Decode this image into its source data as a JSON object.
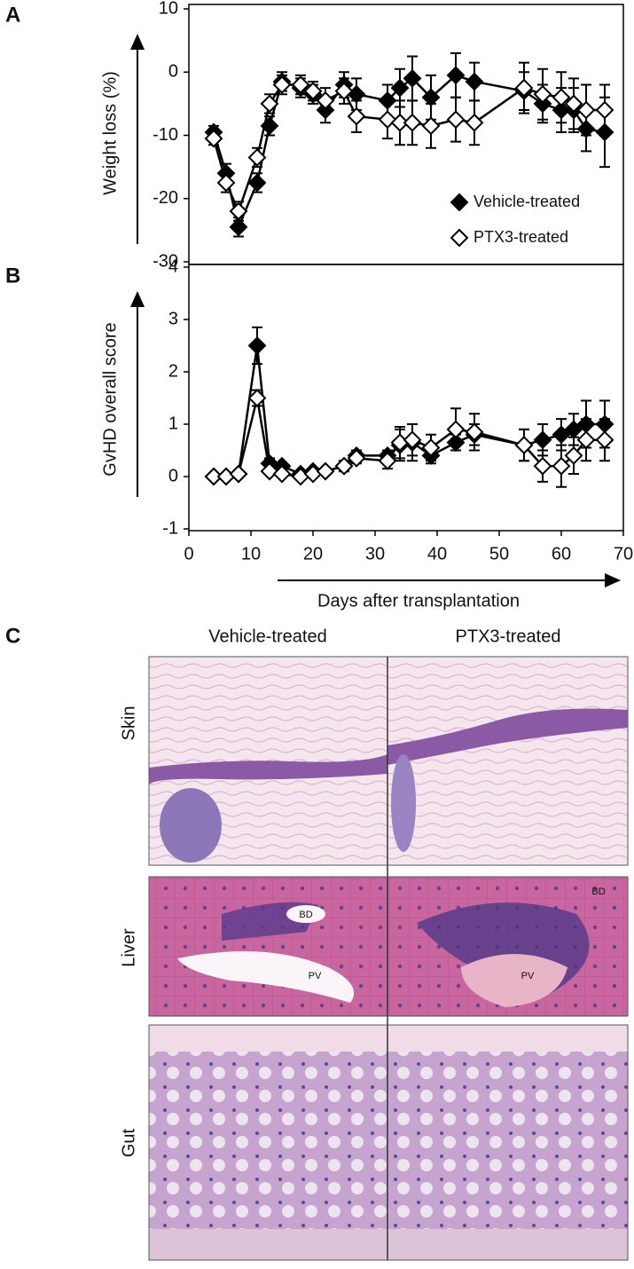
{
  "chart_data": [
    {
      "type": "line",
      "panel": "A",
      "y_label": "Weight loss (%)",
      "x": [
        4,
        6,
        8,
        11,
        13,
        15,
        18,
        20,
        22,
        25,
        27,
        32,
        34,
        36,
        39,
        43,
        46,
        54,
        57,
        60,
        62,
        64,
        67
      ],
      "xlim": [
        0,
        70
      ],
      "ylim": [
        -30,
        10
      ],
      "yticks": [
        -30,
        -20,
        -10,
        0,
        10
      ],
      "legend": "lower right",
      "series": [
        {
          "name": "Vehicle-treated",
          "color": "#000000",
          "fill": "#000000",
          "values": [
            -9.5,
            -16,
            -24.5,
            -17.5,
            -8.5,
            -1.5,
            -2.5,
            -3.5,
            -6,
            -2,
            -3.5,
            -4.5,
            -2.5,
            -1,
            -4,
            -0.5,
            -1.5,
            -3,
            -5,
            -6,
            -6,
            -9,
            -9.5
          ],
          "errors": [
            1,
            1.5,
            1.5,
            1.5,
            1.5,
            1.5,
            1.5,
            1.5,
            2,
            2,
            2.5,
            2.5,
            3,
            3.5,
            3.5,
            3.5,
            3,
            3,
            3,
            3.5,
            3.5,
            3.5,
            5.5
          ]
        },
        {
          "name": "PTX3-treated",
          "color": "#000000",
          "fill": "#ffffff",
          "values": [
            -10.5,
            -17.5,
            -22,
            -13.5,
            -5,
            -2,
            -2,
            -3,
            -4.5,
            -3,
            -7,
            -7.5,
            -8,
            -8,
            -8.5,
            -7.5,
            -8,
            -2.5,
            -3.5,
            -4,
            -5,
            -6,
            -6
          ],
          "errors": [
            1,
            1.5,
            1.5,
            1.5,
            1.5,
            1.5,
            1.5,
            1.5,
            2,
            2,
            2.5,
            3,
            3.5,
            3.5,
            3.5,
            3.5,
            3.5,
            4,
            4,
            4,
            4,
            4,
            4
          ]
        }
      ]
    },
    {
      "type": "line",
      "panel": "B",
      "y_label": "GvHD overall score",
      "x_label": "Days after transplantation",
      "x": [
        4,
        6,
        8,
        11,
        13,
        15,
        18,
        20,
        22,
        25,
        27,
        32,
        34,
        36,
        39,
        43,
        46,
        54,
        57,
        60,
        62,
        64,
        67
      ],
      "xlim": [
        0,
        70
      ],
      "xticks": [
        0,
        10,
        20,
        30,
        40,
        50,
        60,
        70
      ],
      "ylim": [
        -1,
        4
      ],
      "yticks": [
        -1,
        0,
        1,
        2,
        3,
        4
      ],
      "series": [
        {
          "name": "Vehicle-treated",
          "color": "#000000",
          "fill": "#000000",
          "values": [
            0,
            0,
            0.05,
            2.5,
            0.25,
            0.2,
            0.05,
            0.1,
            0.1,
            0.2,
            0.4,
            0.4,
            0.6,
            0.65,
            0.4,
            0.65,
            0.8,
            0.6,
            0.7,
            0.8,
            0.9,
            1.0,
            1.0
          ],
          "errors": [
            0,
            0,
            0,
            0.35,
            0.1,
            0.05,
            0,
            0.05,
            0.05,
            0.1,
            0.1,
            0.1,
            0.3,
            0.35,
            0.15,
            0.15,
            0.2,
            0.3,
            0.3,
            0.3,
            0.3,
            0.45,
            0.45
          ]
        },
        {
          "name": "PTX3-treated",
          "color": "#000000",
          "fill": "#ffffff",
          "values": [
            0,
            0,
            0.05,
            1.5,
            0.1,
            0.05,
            0,
            0.05,
            0.1,
            0.2,
            0.35,
            0.3,
            0.65,
            0.7,
            0.55,
            0.9,
            0.85,
            0.6,
            0.2,
            0.2,
            0.4,
            0.7,
            0.7
          ],
          "errors": [
            0,
            0,
            0,
            0.15,
            0.05,
            0,
            0,
            0,
            0.05,
            0.1,
            0.1,
            0.15,
            0.3,
            0.3,
            0.25,
            0.4,
            0.35,
            0.3,
            0.3,
            0.4,
            0.35,
            0.4,
            0.4
          ]
        }
      ]
    }
  ],
  "histology": {
    "panel": "C",
    "columns": [
      "Vehicle-treated",
      "PTX3-treated"
    ],
    "rows": [
      "Skin",
      "Liver",
      "Gut"
    ],
    "liver_annotations": {
      "vehicle": [
        "BD",
        "PV"
      ],
      "ptx3": [
        "BD",
        "PV"
      ]
    }
  }
}
